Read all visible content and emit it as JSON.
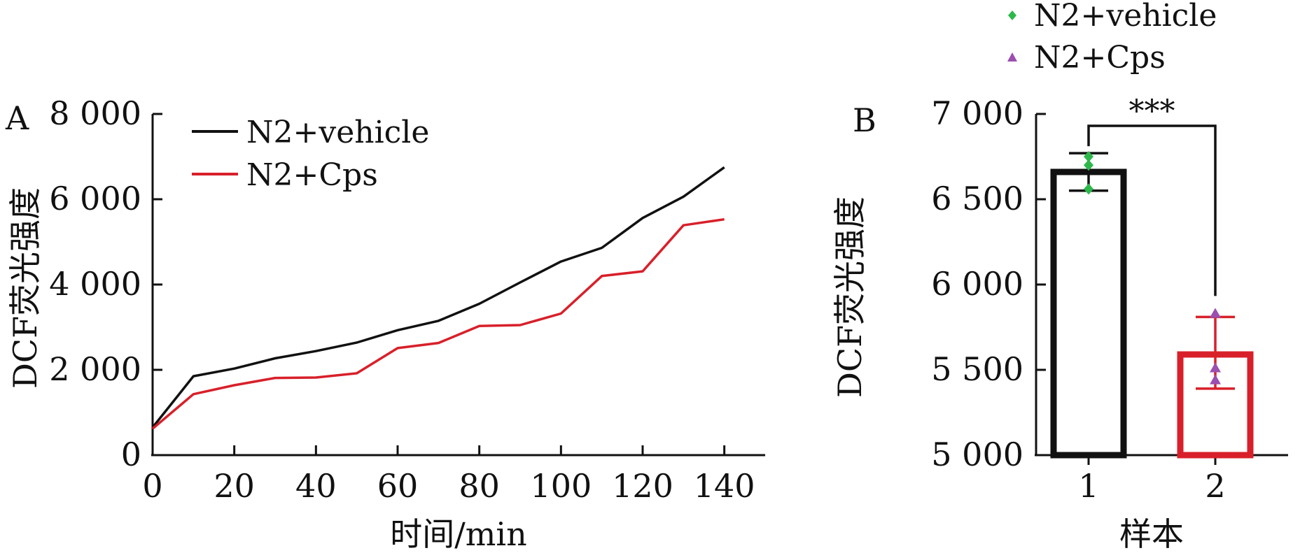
{
  "chart_data": [
    {
      "type": "line",
      "panel_label": "A",
      "xlabel": "时间/min",
      "ylabel": "DCF荧光强度",
      "xlim": [
        0,
        150
      ],
      "ylim": [
        0,
        8000
      ],
      "x_ticks": [
        0,
        20,
        40,
        60,
        80,
        100,
        120,
        140
      ],
      "x_tick_labels": [
        "0",
        "20",
        "40",
        "60",
        "80",
        "100",
        "120",
        "140"
      ],
      "y_ticks": [
        0,
        2000,
        4000,
        6000,
        8000
      ],
      "y_tick_labels": [
        "0",
        "2 000",
        "4 000",
        "6 000",
        "8 000"
      ],
      "legend_position": "top-left",
      "x": [
        0,
        10,
        20,
        30,
        40,
        50,
        60,
        70,
        80,
        90,
        100,
        110,
        120,
        130,
        140
      ],
      "series": [
        {
          "name": "N2+vehicle",
          "color": "#111111",
          "values": [
            650,
            1850,
            2030,
            2270,
            2440,
            2640,
            2930,
            3150,
            3550,
            4050,
            4540,
            4860,
            5560,
            6060,
            6750
          ]
        },
        {
          "name": "N2+Cps",
          "color": "#d8202a",
          "values": [
            620,
            1430,
            1640,
            1810,
            1820,
            1920,
            2510,
            2630,
            3030,
            3050,
            3320,
            4200,
            4310,
            5390,
            5530
          ]
        }
      ]
    },
    {
      "type": "bar",
      "panel_label": "B",
      "xlabel": "样本",
      "ylabel": "DCF荧光强度",
      "ylim": [
        5000,
        7000
      ],
      "y_ticks": [
        5000,
        5500,
        6000,
        6500,
        7000
      ],
      "y_tick_labels": [
        "5 000",
        "5 500",
        "6 000",
        "6 500",
        "7 000"
      ],
      "categories": [
        "1",
        "2"
      ],
      "legend_position": "top-right",
      "legend": [
        {
          "name": "N2+vehicle",
          "marker": "diamond",
          "color": "#2db84b"
        },
        {
          "name": "N2+Cps",
          "marker": "triangle",
          "color": "#9b4fb0"
        }
      ],
      "bars": [
        {
          "category": "1",
          "value": 6660,
          "error": [
            6550,
            6770
          ],
          "edge_color": "#111111",
          "points": [
            6750,
            6700,
            6560
          ],
          "point_color": "#2db84b"
        },
        {
          "category": "2",
          "value": 5590,
          "error": [
            5390,
            5810
          ],
          "edge_color": "#d8202a",
          "points": [
            5830,
            5510,
            5440
          ],
          "point_color": "#9b4fb0"
        }
      ],
      "significance": "***"
    }
  ]
}
